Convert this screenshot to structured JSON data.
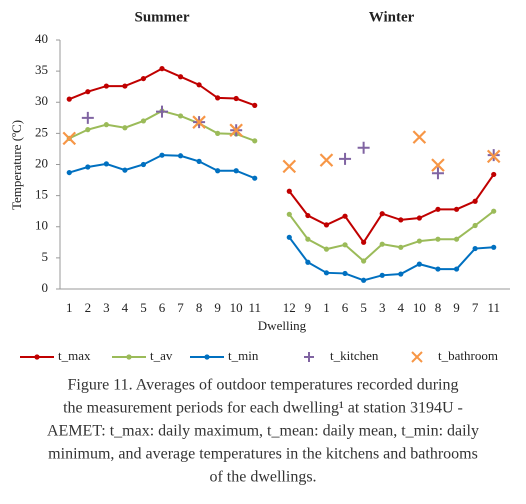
{
  "chart_data": {
    "type": "line",
    "ylabel": "Temperature (ºC)",
    "xlabel": "Dwelling",
    "ylim": [
      0,
      40
    ],
    "yticks": [
      0,
      5,
      10,
      15,
      20,
      25,
      30,
      35,
      40
    ],
    "series": [
      {
        "name": "t_max",
        "color": "#c00000",
        "marker": "circle"
      },
      {
        "name": "t_av",
        "color": "#9bbb59",
        "marker": "circle"
      },
      {
        "name": "t_min",
        "color": "#0070c0",
        "marker": "circle"
      },
      {
        "name": "t_kitchen",
        "color": "#8064a2",
        "marker": "plus"
      },
      {
        "name": "t_bathroom",
        "color": "#f79646",
        "marker": "cross"
      }
    ],
    "panels": [
      {
        "title": "Summer",
        "categories": [
          "1",
          "2",
          "3",
          "4",
          "5",
          "6",
          "7",
          "8",
          "9",
          "10",
          "11"
        ],
        "values": [
          [
            30.5,
            31.7,
            32.6,
            32.6,
            33.8,
            35.4,
            34.1,
            32.8,
            30.7,
            30.6,
            29.5
          ],
          [
            24.2,
            25.6,
            26.4,
            25.9,
            27.0,
            28.6,
            27.8,
            26.6,
            25.0,
            24.9,
            23.8
          ],
          [
            18.7,
            19.6,
            20.1,
            19.1,
            20.0,
            21.5,
            21.4,
            20.5,
            19.0,
            19.0,
            17.8
          ],
          [
            null,
            27.5,
            null,
            null,
            null,
            28.5,
            null,
            26.8,
            null,
            25.5,
            null
          ],
          [
            24.2,
            null,
            null,
            null,
            null,
            null,
            null,
            26.8,
            null,
            25.5,
            null
          ]
        ]
      },
      {
        "title": "Winter",
        "categories": [
          "12",
          "9",
          "1",
          "6",
          "5",
          "3",
          "4",
          "10",
          "8",
          "9",
          "7",
          "11"
        ],
        "values": [
          [
            15.7,
            11.8,
            10.3,
            11.7,
            7.5,
            12.1,
            11.1,
            11.4,
            12.8,
            12.8,
            14.1,
            18.4
          ],
          [
            12.0,
            8.0,
            6.4,
            7.1,
            4.5,
            7.2,
            6.7,
            7.7,
            8.0,
            8.0,
            10.2,
            12.5
          ],
          [
            8.3,
            4.3,
            2.6,
            2.5,
            1.4,
            2.2,
            2.4,
            4.0,
            3.2,
            3.2,
            6.5,
            6.7
          ],
          [
            null,
            null,
            null,
            20.9,
            22.7,
            null,
            null,
            null,
            18.6,
            null,
            null,
            21.5
          ],
          [
            19.7,
            null,
            20.7,
            null,
            null,
            null,
            null,
            24.4,
            19.9,
            null,
            null,
            21.3
          ]
        ]
      }
    ],
    "caption": [
      "Figure 11. Averages of outdoor temperatures recorded during",
      "the measurement periods for each dwelling¹ at station 3194U -",
      "AEMET: t_max: daily maximum, t_mean: daily mean, t_min: daily",
      "minimum, and average temperatures in the kitchens and bathrooms",
      "of the dwellings."
    ]
  }
}
